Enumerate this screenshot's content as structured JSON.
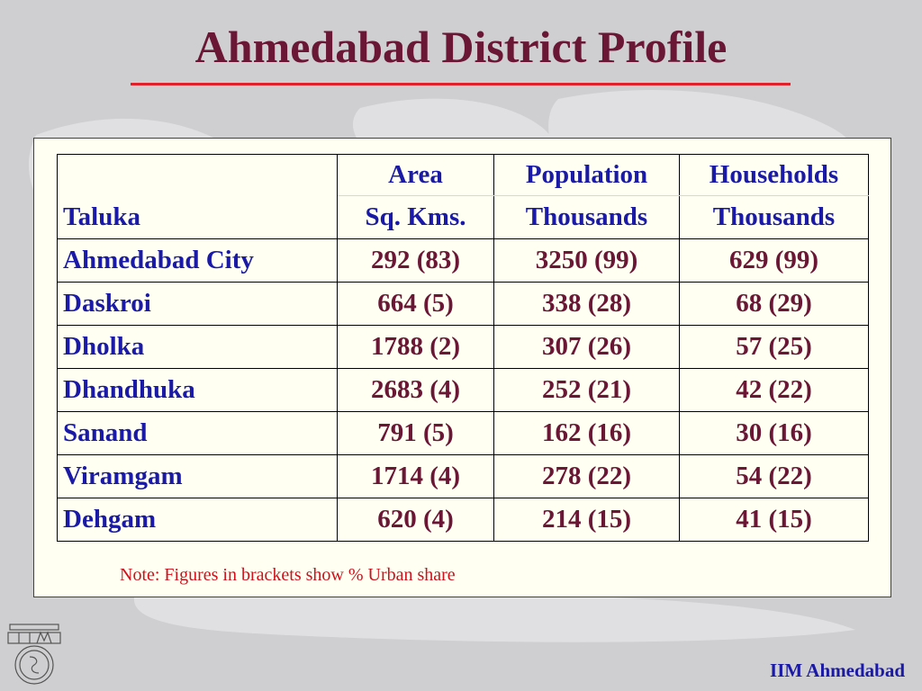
{
  "slide": {
    "title": "Ahmedabad District Profile",
    "footer": "IIM Ahmedabad",
    "note": "Note: Figures in brackets show % Urban share"
  },
  "table": {
    "header_top": [
      "",
      "Area",
      "Population",
      "Households"
    ],
    "header_bottom": [
      "Taluka",
      "Sq. Kms.",
      "Thousands",
      "Thousands"
    ],
    "rows": [
      [
        "Ahmedabad City",
        "292 (83)",
        "3250 (99)",
        "629 (99)"
      ],
      [
        "Daskroi",
        "664 (5)",
        "338 (28)",
        "68 (29)"
      ],
      [
        "Dholka",
        "1788 (2)",
        "307 (26)",
        "57 (25)"
      ],
      [
        "Dhandhuka",
        "2683 (4)",
        "252 (21)",
        "42 (22)"
      ],
      [
        "Sanand",
        "791 (5)",
        "162 (16)",
        "30 (16)"
      ],
      [
        "Viramgam",
        "1714 (4)",
        "278 (22)",
        "54 (22)"
      ],
      [
        "Dehgam",
        "620 (4)",
        "214 (15)",
        "41 (15)"
      ]
    ]
  },
  "colors": {
    "title": "#6a1635",
    "title_rule": "#e0202a",
    "header_text": "#1a1aa6",
    "value_text": "#6a1635",
    "note_text": "#d0101c",
    "background": "#cfcfd1",
    "panel": "#fffff2"
  },
  "icons": [
    "world-map-background",
    "iim-logo-icon"
  ]
}
